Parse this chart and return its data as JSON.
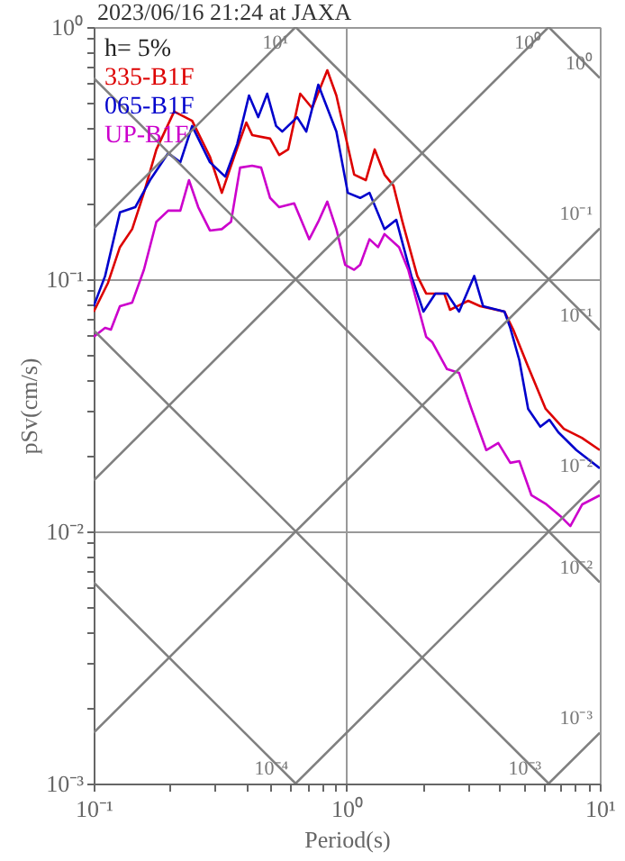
{
  "chart_data": {
    "type": "line",
    "title": "2023/06/16 21:24 at JAXA",
    "xlabel": "Period(s)",
    "ylabel": "pSv(cm/s)",
    "log": "xy",
    "grid": true,
    "legend": "top left",
    "xlim": [
      0.1,
      10
    ],
    "ylim": [
      0.001,
      1
    ],
    "xticks": [
      {
        "value": 0.1,
        "label": "10⁻¹"
      },
      {
        "value": 0.2,
        "label": null
      },
      {
        "value": 0.3,
        "label": null
      },
      {
        "value": 0.4,
        "label": null
      },
      {
        "value": 0.5,
        "label": null
      },
      {
        "value": 0.6,
        "label": null
      },
      {
        "value": 0.7,
        "label": null
      },
      {
        "value": 0.8,
        "label": null
      },
      {
        "value": 0.9,
        "label": null
      },
      {
        "value": 1,
        "label": "10⁰"
      },
      {
        "value": 2,
        "label": null
      },
      {
        "value": 3,
        "label": null
      },
      {
        "value": 4,
        "label": null
      },
      {
        "value": 5,
        "label": null
      },
      {
        "value": 6,
        "label": null
      },
      {
        "value": 7,
        "label": null
      },
      {
        "value": 8,
        "label": null
      },
      {
        "value": 9,
        "label": null
      },
      {
        "value": 10,
        "label": "10¹"
      }
    ],
    "yticks": [
      {
        "value": 0.001,
        "label": "10⁻³"
      },
      {
        "value": 0.002,
        "label": null
      },
      {
        "value": 0.003,
        "label": null
      },
      {
        "value": 0.004,
        "label": null
      },
      {
        "value": 0.005,
        "label": null
      },
      {
        "value": 0.006,
        "label": null
      },
      {
        "value": 0.007,
        "label": null
      },
      {
        "value": 0.008,
        "label": null
      },
      {
        "value": 0.009,
        "label": null
      },
      {
        "value": 0.01,
        "label": "10⁻²"
      },
      {
        "value": 0.02,
        "label": null
      },
      {
        "value": 0.03,
        "label": null
      },
      {
        "value": 0.04,
        "label": null
      },
      {
        "value": 0.05,
        "label": null
      },
      {
        "value": 0.06,
        "label": null
      },
      {
        "value": 0.07,
        "label": null
      },
      {
        "value": 0.08,
        "label": null
      },
      {
        "value": 0.09,
        "label": null
      },
      {
        "value": 0.1,
        "label": "10⁻¹"
      },
      {
        "value": 0.2,
        "label": null
      },
      {
        "value": 0.3,
        "label": null
      },
      {
        "value": 0.4,
        "label": null
      },
      {
        "value": 0.5,
        "label": null
      },
      {
        "value": 0.6,
        "label": null
      },
      {
        "value": 0.7,
        "label": null
      },
      {
        "value": 0.8,
        "label": null
      },
      {
        "value": 0.9,
        "label": null
      },
      {
        "value": 1,
        "label": "10⁰"
      }
    ],
    "series": [
      {
        "name": "335-B1F",
        "color": "#dd0000",
        "x": [
          0.1,
          0.114,
          0.127,
          0.142,
          0.158,
          0.177,
          0.208,
          0.245,
          0.288,
          0.321,
          0.359,
          0.401,
          0.423,
          0.498,
          0.541,
          0.587,
          0.655,
          0.73,
          0.838,
          0.91,
          1.07,
          1.19,
          1.29,
          1.41,
          1.53,
          1.66,
          1.9,
          2.06,
          2.43,
          2.56,
          3.02,
          3.37,
          4.2,
          4.55,
          5.19,
          6.11,
          7.21,
          8.49,
          10
        ],
        "values": [
          0.0743,
          0.0968,
          0.134,
          0.158,
          0.22,
          0.327,
          0.462,
          0.425,
          0.306,
          0.22,
          0.306,
          0.418,
          0.373,
          0.361,
          0.311,
          0.327,
          0.544,
          0.477,
          0.674,
          0.535,
          0.26,
          0.247,
          0.327,
          0.26,
          0.235,
          0.169,
          0.103,
          0.0877,
          0.0877,
          0.0756,
          0.0821,
          0.0781,
          0.0744,
          0.0631,
          0.0454,
          0.0306,
          0.0255,
          0.0235,
          0.021
        ]
      },
      {
        "name": "065-B1F",
        "color": "#0000cc",
        "x": [
          0.1,
          0.111,
          0.127,
          0.146,
          0.167,
          0.197,
          0.22,
          0.245,
          0.288,
          0.331,
          0.369,
          0.411,
          0.447,
          0.485,
          0.526,
          0.556,
          0.637,
          0.692,
          0.772,
          0.91,
          1.01,
          1.13,
          1.23,
          1.41,
          1.57,
          1.8,
          2.01,
          2.24,
          2.49,
          2.78,
          3.19,
          3.46,
          4.2,
          4.43,
          4.81,
          5.21,
          5.82,
          6.32,
          6.86,
          8.08,
          10
        ],
        "values": [
          0.0781,
          0.103,
          0.184,
          0.193,
          0.247,
          0.316,
          0.291,
          0.405,
          0.291,
          0.255,
          0.343,
          0.535,
          0.439,
          0.544,
          0.405,
          0.385,
          0.439,
          0.385,
          0.591,
          0.385,
          0.22,
          0.21,
          0.22,
          0.158,
          0.172,
          0.103,
          0.0744,
          0.0877,
          0.0877,
          0.0744,
          0.103,
          0.0781,
          0.0744,
          0.0641,
          0.0477,
          0.0306,
          0.026,
          0.0277,
          0.0247,
          0.021,
          0.0178
        ]
      },
      {
        "name": "UP-B1F",
        "color": "#cc00cc",
        "x": [
          0.1,
          0.111,
          0.117,
          0.127,
          0.142,
          0.158,
          0.177,
          0.197,
          0.22,
          0.238,
          0.259,
          0.288,
          0.321,
          0.349,
          0.379,
          0.423,
          0.459,
          0.498,
          0.541,
          0.62,
          0.711,
          0.772,
          0.838,
          0.91,
          0.986,
          1.07,
          1.13,
          1.23,
          1.33,
          1.41,
          1.61,
          1.75,
          2.06,
          2.18,
          2.49,
          2.78,
          3.11,
          3.56,
          3.97,
          4.43,
          4.81,
          5.37,
          6.15,
          7.05,
          7.65,
          8.53,
          10
        ],
        "values": [
          0.0591,
          0.0641,
          0.0631,
          0.0781,
          0.0808,
          0.109,
          0.169,
          0.187,
          0.187,
          0.247,
          0.193,
          0.156,
          0.158,
          0.169,
          0.277,
          0.282,
          0.277,
          0.21,
          0.193,
          0.2,
          0.144,
          0.169,
          0.203,
          0.158,
          0.114,
          0.109,
          0.114,
          0.144,
          0.134,
          0.151,
          0.134,
          0.109,
          0.0591,
          0.0562,
          0.044,
          0.0425,
          0.0306,
          0.021,
          0.0224,
          0.0187,
          0.019,
          0.0139,
          0.0128,
          0.0114,
          0.0105,
          0.0128,
          0.0139
        ]
      },
      {
        "color": "#808080",
        "x": [
          0.1,
          0.628
        ],
        "values": [
          0.00628,
          0.001
        ]
      },
      {
        "color": "#808080",
        "x": [
          0.1,
          6.28
        ],
        "values": [
          0.0628,
          0.001
        ]
      },
      {
        "color": "#808080",
        "x": [
          0.1,
          10
        ],
        "values": [
          0.628,
          0.00628
        ]
      },
      {
        "color": "#808080",
        "x": [
          0.628,
          10
        ],
        "values": [
          1,
          0.0628
        ]
      },
      {
        "color": "#808080",
        "x": [
          6.28,
          10
        ],
        "values": [
          1,
          0.628
        ]
      },
      {
        "color": "#808080",
        "x": [
          6.28,
          10
        ],
        "values": [
          0.001,
          0.00159
        ]
      },
      {
        "color": "#808080",
        "x": [
          0.628,
          10
        ],
        "values": [
          0.001,
          0.0159
        ]
      },
      {
        "color": "#808080",
        "x": [
          0.1,
          10
        ],
        "values": [
          0.00159,
          0.159
        ]
      },
      {
        "color": "#808080",
        "x": [
          0.1,
          6.28
        ],
        "values": [
          0.0159,
          1
        ]
      },
      {
        "color": "#808080",
        "x": [
          0.1,
          0.628
        ],
        "values": [
          0.159,
          1
        ]
      }
    ],
    "annotations": [
      "h= 5%",
      {
        "text": "10¹",
        "x": 0.628,
        "y": 1
      },
      {
        "text": "10⁰",
        "x": 6.28,
        "y": 1
      },
      {
        "text": "10⁰",
        "x": 10,
        "y": 0.628
      },
      {
        "text": "10⁻¹",
        "x": 10,
        "y": 0.159
      },
      {
        "text": "10⁻¹",
        "x": 10,
        "y": 0.0628
      },
      {
        "text": "10⁻²",
        "x": 10,
        "y": 0.0159
      },
      {
        "text": "10⁻²",
        "x": 10,
        "y": 0.00628
      },
      {
        "text": "10⁻⁴",
        "x": 0.628,
        "y": 0.001
      },
      {
        "text": "10⁻³",
        "x": 6.28,
        "y": 0.001
      },
      {
        "text": "10⁻³",
        "x": 10,
        "y": 0.00159
      }
    ]
  }
}
